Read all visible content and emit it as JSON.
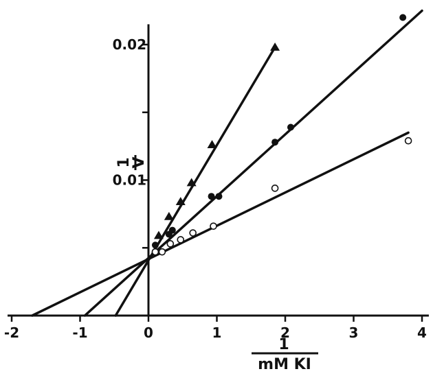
{
  "chart_data": {
    "type": "scatter",
    "title": "",
    "xlabel": {
      "numerator": "1",
      "denominator": "mM KI"
    },
    "ylabel": {
      "numerator": "1",
      "denominator": "V"
    },
    "xlim": [
      -2,
      4.1
    ],
    "ylim": [
      0,
      0.0215
    ],
    "x_ticks": [
      {
        "value": -2,
        "label": "-2"
      },
      {
        "value": -1,
        "label": "-1"
      },
      {
        "value": 0,
        "label": "0"
      },
      {
        "value": 1,
        "label": "1"
      },
      {
        "value": 2,
        "label": "2"
      },
      {
        "value": 3,
        "label": "3"
      },
      {
        "value": 4,
        "label": "4"
      }
    ],
    "y_ticks": [
      {
        "value": 0.005,
        "label": ""
      },
      {
        "value": 0.01,
        "label": "0.01"
      },
      {
        "value": 0.015,
        "label": ""
      },
      {
        "value": 0.02,
        "label": "0.02"
      }
    ],
    "grid": false,
    "legend": "none",
    "series": [
      {
        "marker": "triangle",
        "line": {
          "x": [
            -0.48,
            1.85
          ],
          "y": [
            0,
            0.0198
          ]
        },
        "points": [
          {
            "x": 0.15,
            "y": 0.0059
          },
          {
            "x": 0.3,
            "y": 0.0073
          },
          {
            "x": 0.47,
            "y": 0.0084
          },
          {
            "x": 0.63,
            "y": 0.0098
          },
          {
            "x": 0.93,
            "y": 0.0126
          },
          {
            "x": 1.85,
            "y": 0.0198
          }
        ]
      },
      {
        "marker": "filled-circle",
        "line": {
          "x": [
            -0.93,
            4.0
          ],
          "y": [
            0,
            0.0225
          ]
        },
        "points": [
          {
            "x": 0.1,
            "y": 0.0052
          },
          {
            "x": 0.3,
            "y": 0.006
          },
          {
            "x": 0.35,
            "y": 0.0063
          },
          {
            "x": 0.92,
            "y": 0.0088
          },
          {
            "x": 1.03,
            "y": 0.0088
          },
          {
            "x": 1.85,
            "y": 0.0128
          },
          {
            "x": 2.08,
            "y": 0.0139
          },
          {
            "x": 3.72,
            "y": 0.022
          }
        ]
      },
      {
        "marker": "open-circle",
        "line": {
          "x": [
            -1.7,
            3.8
          ],
          "y": [
            0,
            0.0135
          ]
        },
        "points": [
          {
            "x": 0.1,
            "y": 0.0047
          },
          {
            "x": 0.2,
            "y": 0.0047
          },
          {
            "x": 0.32,
            "y": 0.0053
          },
          {
            "x": 0.47,
            "y": 0.0056
          },
          {
            "x": 0.65,
            "y": 0.0061
          },
          {
            "x": 0.95,
            "y": 0.0066
          },
          {
            "x": 1.85,
            "y": 0.0094
          },
          {
            "x": 3.8,
            "y": 0.0129
          }
        ]
      }
    ]
  }
}
